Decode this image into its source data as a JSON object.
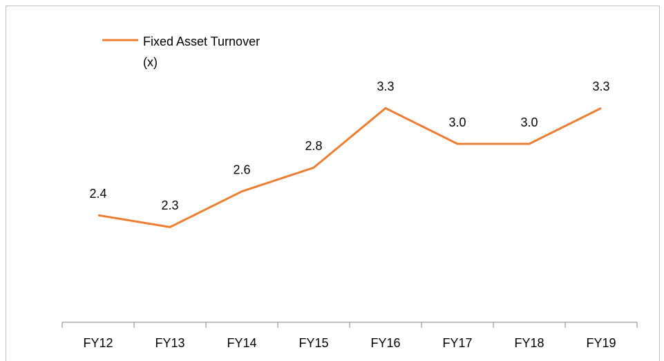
{
  "chart_data": {
    "type": "line",
    "categories": [
      "FY12",
      "FY13",
      "FY14",
      "FY15",
      "FY16",
      "FY17",
      "FY18",
      "FY19"
    ],
    "series": [
      {
        "name": "Fixed Asset Turnover (x)",
        "color": "#ed7d31",
        "values": [
          2.4,
          2.3,
          2.6,
          2.8,
          3.3,
          3.0,
          3.0,
          3.3
        ],
        "value_labels": [
          "2.4",
          "2.3",
          "2.6",
          "2.8",
          "3.3",
          "3.0",
          "3.0",
          "3.3"
        ]
      }
    ],
    "ylim": [
      1.5,
      4.0
    ]
  }
}
